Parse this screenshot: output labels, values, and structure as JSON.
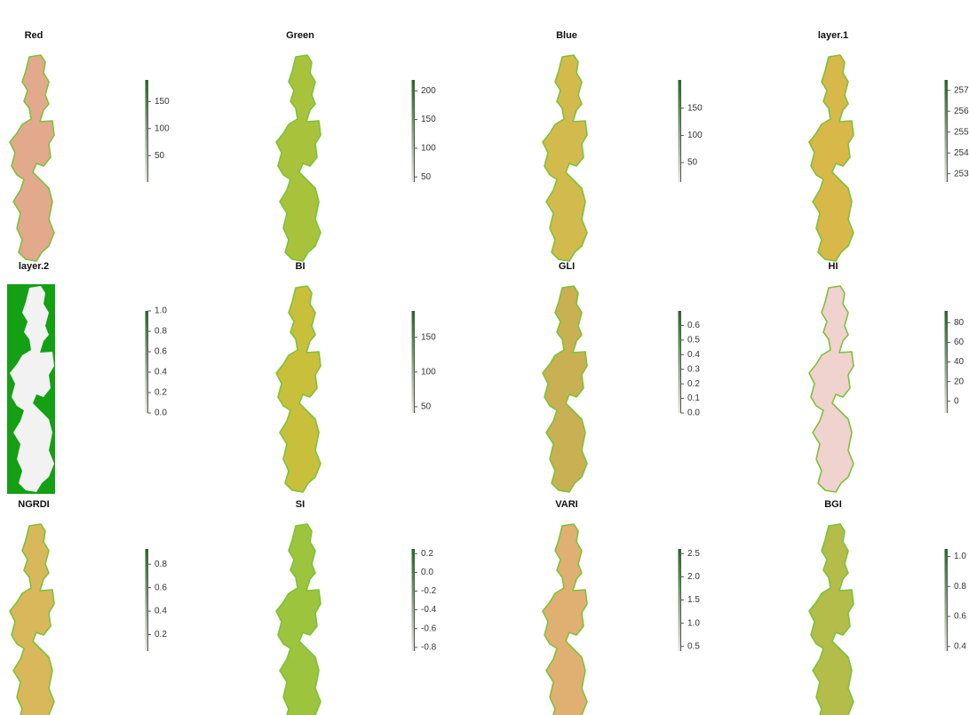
{
  "chart_data": [
    {
      "type": "raster",
      "title": "Red",
      "color": "#e3a98c",
      "bar_colors": [
        "#e8e0dc",
        "#1f6b1f"
      ],
      "ylim": [
        1,
        190
      ],
      "yticks": [
        50,
        100,
        150
      ]
    },
    {
      "type": "raster",
      "title": "Green",
      "color": "#a9c23c",
      "bar_colors": [
        "#e8e0dc",
        "#1f6b1f"
      ],
      "ylim": [
        41,
        219
      ],
      "yticks": [
        50,
        100,
        150,
        200
      ]
    },
    {
      "type": "raster",
      "title": "Blue",
      "color": "#d2bb4c",
      "bar_colors": [
        "#e8e0dc",
        "#1f6b1f"
      ],
      "ylim": [
        14,
        202
      ],
      "yticks": [
        50,
        100,
        150
      ]
    },
    {
      "type": "raster",
      "title": "layer.1",
      "color": "#d8b848",
      "bar_colors": [
        "#e8e0dc",
        "#1f6b1f"
      ],
      "ylim": [
        252.6,
        257.5
      ],
      "yticks": [
        253,
        254,
        255,
        256,
        257
      ]
    },
    {
      "type": "raster",
      "title": "layer.2",
      "color": "#f2f2f2",
      "background": "#14a014",
      "bar_colors": [
        "#e8e0dc",
        "#1f6b1f"
      ],
      "ylim": [
        0,
        1
      ],
      "yticks": [
        {
          "value": 0,
          "label": "0.0"
        },
        0.2,
        0.4,
        0.6,
        0.8,
        {
          "value": 1,
          "label": "1.0"
        }
      ]
    },
    {
      "type": "raster",
      "title": "BI",
      "color": "#c8c03a",
      "bar_colors": [
        "#e8e0dc",
        "#1f6b1f"
      ],
      "ylim": [
        41,
        188
      ],
      "yticks": [
        50,
        100,
        150
      ]
    },
    {
      "type": "raster",
      "title": "GLI",
      "color": "#c9b052",
      "bar_colors": [
        "#e8e0dc",
        "#1f6b1f"
      ],
      "ylim": [
        0,
        0.7
      ],
      "yticks": [
        {
          "value": 0,
          "label": "0.0"
        },
        0.1,
        0.2,
        0.3,
        0.4,
        0.5,
        0.6
      ]
    },
    {
      "type": "raster",
      "title": "HI",
      "color": "#f0d2ce",
      "bar_colors": [
        "#e8e0dc",
        "#1f6b1f"
      ],
      "ylim": [
        -12,
        92
      ],
      "yticks": [
        0,
        20,
        40,
        60,
        80
      ]
    },
    {
      "type": "raster",
      "title": "NGRDI",
      "color": "#d8b85a",
      "bar_colors": [
        "#e8e0dc",
        "#1f6b1f"
      ],
      "ylim": [
        0.06,
        0.93
      ],
      "yticks": [
        0.2,
        0.4,
        0.6,
        0.8
      ]
    },
    {
      "type": "raster",
      "title": "SI",
      "color": "#9cc43c",
      "bar_colors": [
        "#e8e0dc",
        "#1f6b1f"
      ],
      "ylim": [
        -0.84,
        0.25
      ],
      "yticks": [
        -0.8,
        -0.6,
        -0.4,
        -0.2,
        {
          "value": 0,
          "label": "0.0"
        },
        0.2
      ]
    },
    {
      "type": "raster",
      "title": "VARI",
      "color": "#e0b072",
      "bar_colors": [
        "#e8e0dc",
        "#1f6b1f"
      ],
      "ylim": [
        0.4,
        2.6
      ],
      "yticks": [
        0.5,
        {
          "value": 1,
          "label": "1.0"
        },
        1.5,
        {
          "value": 2,
          "label": "2.0"
        },
        2.5
      ]
    },
    {
      "type": "raster",
      "title": "BGI",
      "color": "#b4bc4a",
      "bar_colors": [
        "#e8e0dc",
        "#1f6b1f"
      ],
      "ylim": [
        0.37,
        1.05
      ],
      "yticks": [
        0.4,
        0.6,
        0.8,
        {
          "value": 1,
          "label": "1.0"
        }
      ]
    }
  ]
}
